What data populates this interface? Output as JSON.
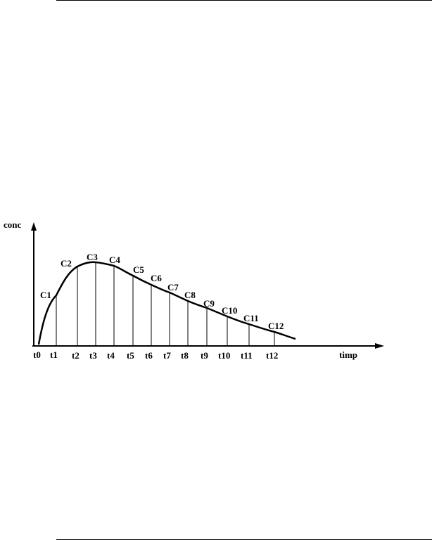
{
  "diagram": {
    "y_axis_label": "conc",
    "x_axis_label": "timp",
    "concentration_labels": [
      "C1",
      "C2",
      "C3",
      "C4",
      "C5",
      "C6",
      "C7",
      "C8",
      "C9",
      "C10",
      "C11",
      "C12"
    ],
    "time_labels": [
      "t0",
      "t1",
      "t2",
      "t3",
      "t4",
      "t5",
      "t6",
      "t7",
      "t8",
      "t9",
      "t10",
      "t11",
      "t12"
    ]
  }
}
